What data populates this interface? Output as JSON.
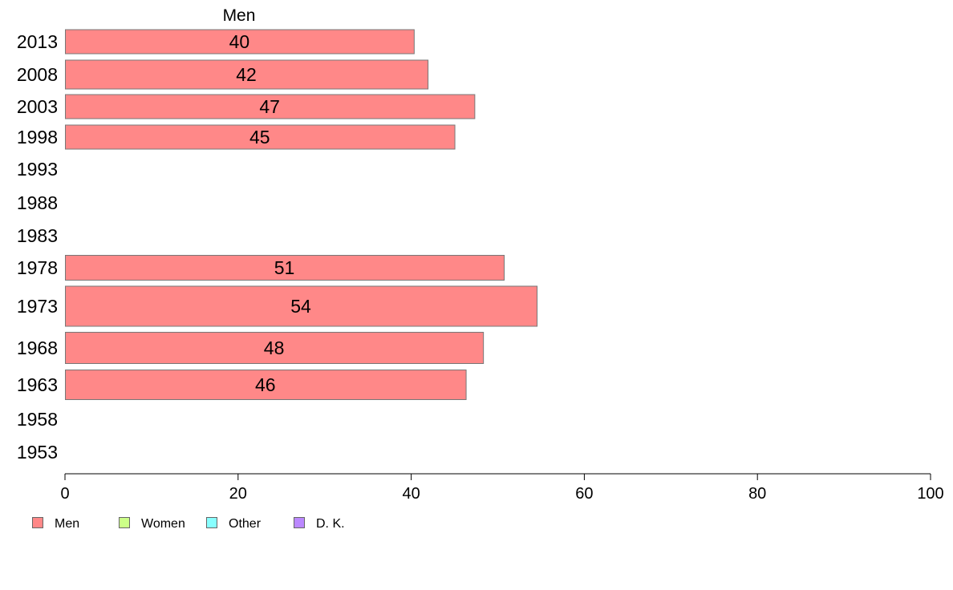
{
  "chart_data": {
    "type": "bar",
    "orientation": "horizontal",
    "title": "Men",
    "categories": [
      "2013",
      "2008",
      "2003",
      "1998",
      "1993",
      "1988",
      "1983",
      "1978",
      "1973",
      "1968",
      "1963",
      "1958",
      "1953"
    ],
    "series": [
      {
        "name": "Men",
        "color": "#ff8888",
        "values": [
          40.3,
          41.9,
          47.3,
          45.0,
          null,
          null,
          null,
          50.7,
          54.5,
          48.3,
          46.3,
          null,
          null
        ],
        "labels": [
          "40",
          "42",
          "47",
          "45",
          "",
          "",
          "",
          "51",
          "54",
          "48",
          "46",
          "",
          ""
        ]
      }
    ],
    "xlim": [
      0,
      100
    ],
    "xticks": [
      "0",
      "20",
      "40",
      "60",
      "80",
      "100"
    ],
    "grid": false,
    "legend_position": "bottom-left"
  },
  "legend": [
    {
      "label": "Men",
      "color": "#ff8888"
    },
    {
      "label": "Women",
      "color": "#ccff88"
    },
    {
      "label": "Other",
      "color": "#88ffff"
    },
    {
      "label": "D. K.",
      "color": "#bb88ff"
    }
  ]
}
